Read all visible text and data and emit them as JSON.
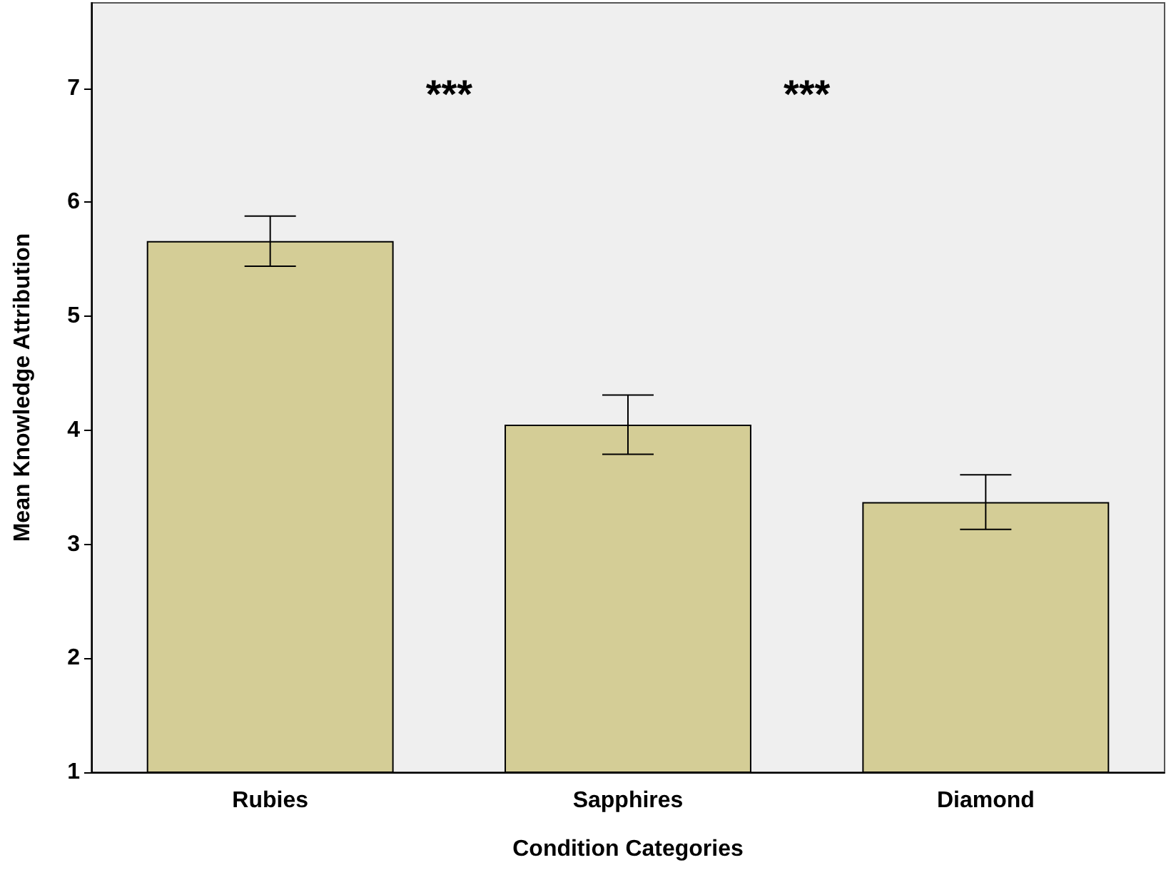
{
  "chart_data": {
    "type": "bar",
    "xlabel": "Condition Categories",
    "ylabel": "Mean Knowledge Attribution",
    "categories": [
      "Rubies",
      "Sapphires",
      "Diamond"
    ],
    "values": [
      5.66,
      4.05,
      3.37
    ],
    "errors": [
      0.22,
      0.26,
      0.24
    ],
    "color": "#d4cd96",
    "ylim": [
      1,
      7.75
    ],
    "yticks": [
      1,
      2,
      3,
      4,
      5,
      6,
      7
    ],
    "grid": false,
    "annotations": [
      "***",
      "***"
    ]
  }
}
